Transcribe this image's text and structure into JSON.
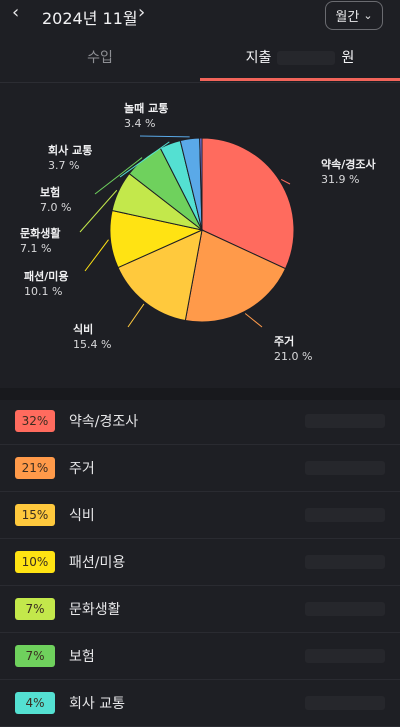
{
  "header": {
    "prev_icon": "chevron-left",
    "month_label": "2024년 11월",
    "next_icon": "chevron-right",
    "period_label": "월간",
    "period_icon": "chevron-down"
  },
  "tabs": [
    {
      "label": "수입",
      "active": false
    },
    {
      "label": "지출",
      "active": true,
      "suffix": "원"
    }
  ],
  "chart_data": {
    "type": "pie",
    "slices": [
      {
        "label": "약속/경조사",
        "value": 31.9,
        "display": "31.9 %",
        "color": "#ff6b5e"
      },
      {
        "label": "주거",
        "value": 21.0,
        "display": "21.0 %",
        "color": "#ff9a4a"
      },
      {
        "label": "식비",
        "value": 15.4,
        "display": "15.4 %",
        "color": "#ffc93d"
      },
      {
        "label": "패션/미용",
        "value": 10.1,
        "display": "10.1 %",
        "color": "#ffe313"
      },
      {
        "label": "문화생활",
        "value": 7.1,
        "display": "7.1 %",
        "color": "#c3e84b"
      },
      {
        "label": "보험",
        "value": 7.0,
        "display": "7.0 %",
        "color": "#6fd15d"
      },
      {
        "label": "회사 교통",
        "value": 3.7,
        "display": "3.7 %",
        "color": "#54e0d2"
      },
      {
        "label": "놀때 교통",
        "value": 3.4,
        "display": "3.4 %",
        "color": "#5aa9e8"
      },
      {
        "label": "",
        "value": 0.4,
        "display": "",
        "color": "#7a7ae8"
      }
    ]
  },
  "list": [
    {
      "percent": "32%",
      "label": "약속/경조사",
      "color": "#ff6b5e"
    },
    {
      "percent": "21%",
      "label": "주거",
      "color": "#ff9a4a"
    },
    {
      "percent": "15%",
      "label": "식비",
      "color": "#ffc93d"
    },
    {
      "percent": "10%",
      "label": "패션/미용",
      "color": "#ffe313"
    },
    {
      "percent": "7%",
      "label": "문화생활",
      "color": "#c3e84b"
    },
    {
      "percent": "7%",
      "label": "보험",
      "color": "#6fd15d"
    },
    {
      "percent": "4%",
      "label": "회사 교통",
      "color": "#54e0d2"
    }
  ]
}
